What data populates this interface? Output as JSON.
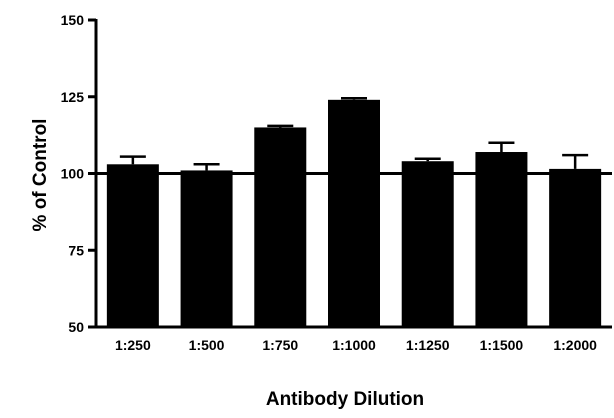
{
  "chart_data": {
    "type": "bar",
    "title": "",
    "xlabel": "Antibody Dilution",
    "ylabel": "% of Control",
    "categories": [
      "1:250",
      "1:500",
      "1:750",
      "1:1000",
      "1:1250",
      "1:1500",
      "1:2000"
    ],
    "series": [
      {
        "values": [
          103,
          101,
          115,
          124,
          104,
          107,
          101.5
        ],
        "error": [
          2.5,
          2,
          0.5,
          0.5,
          0.8,
          3,
          4.5
        ]
      }
    ],
    "ylim": [
      50,
      150
    ],
    "yticks": [
      50,
      75,
      100,
      125,
      150
    ],
    "reference_line": 100,
    "grid": false,
    "legend": "none",
    "bar_color": "#000000"
  }
}
